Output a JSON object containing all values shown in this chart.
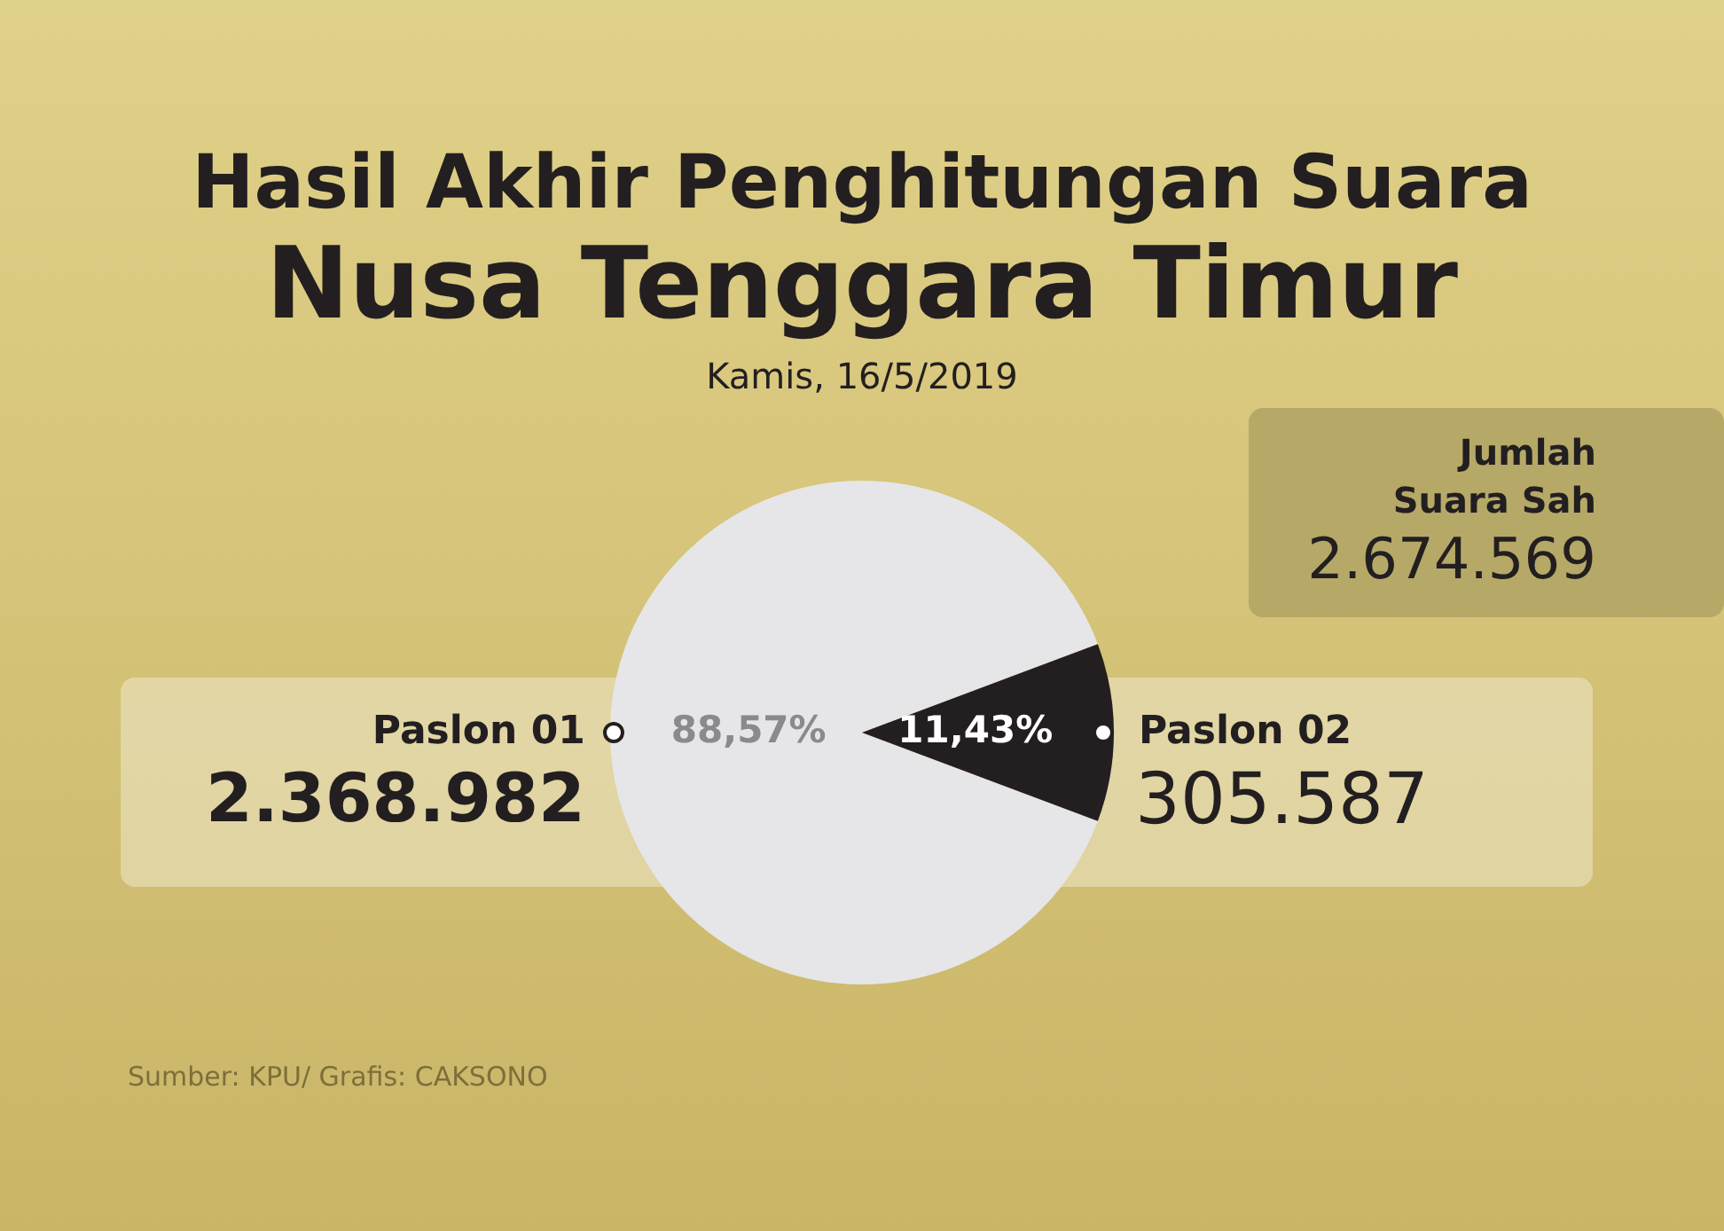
{
  "chart_data": {
    "type": "pie",
    "title": "Hasil Akhir Penghitungan Suara",
    "subtitle": "Nusa Tenggara Timur",
    "categories": [
      "Paslon 01",
      "Paslon 02"
    ],
    "values": [
      88.57,
      11.43
    ],
    "value_labels": [
      "88,57%",
      "11,43%"
    ],
    "colors": [
      "#e6e6e8",
      "#231f20"
    ],
    "legend": false,
    "annotations": [
      "Kamis, 16/5/2019",
      "2.368.982",
      "305.587",
      "Jumlah\nSuara Sah",
      "2.674.569",
      "Sumber: KPU/ Grafis: CAKSONO"
    ]
  }
}
